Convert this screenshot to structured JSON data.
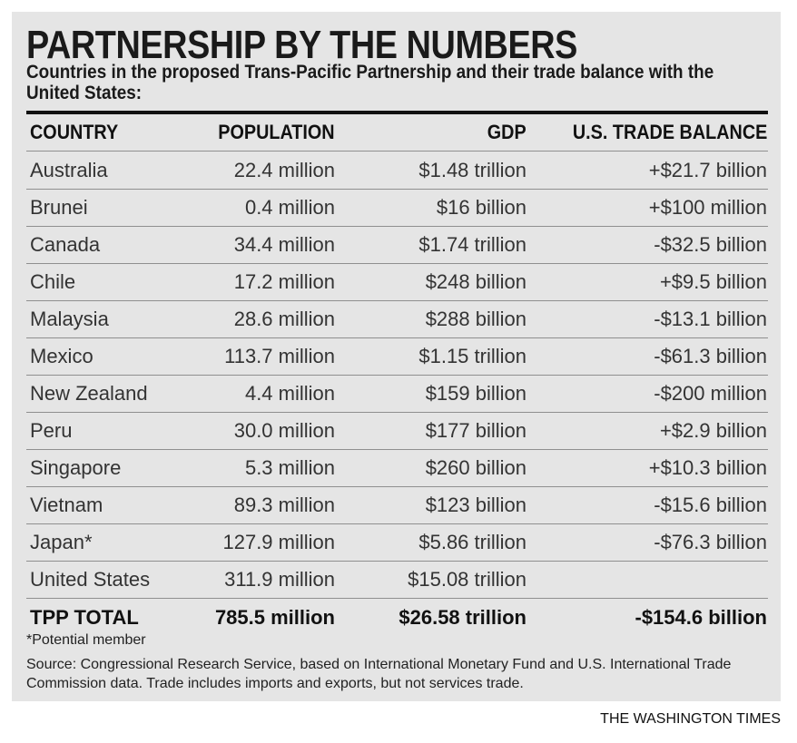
{
  "title": "PARTNERSHIP BY THE NUMBERS",
  "subtitle": "Countries in the proposed Trans-Pacific Partnership and their trade balance with the United States:",
  "headers": {
    "country": "COUNTRY",
    "population": "POPULATION",
    "gdp": "GDP",
    "balance": "U.S. TRADE BALANCE"
  },
  "rows": [
    {
      "country": "Australia",
      "population": "22.4 million",
      "gdp": "$1.48 trillion",
      "balance": "+$21.7 billion"
    },
    {
      "country": "Brunei",
      "population": "0.4 million",
      "gdp": "$16 billion",
      "balance": "+$100 million"
    },
    {
      "country": "Canada",
      "population": "34.4 million",
      "gdp": "$1.74 trillion",
      "balance": "-$32.5 billion"
    },
    {
      "country": "Chile",
      "population": "17.2 million",
      "gdp": "$248 billion",
      "balance": "+$9.5 billion"
    },
    {
      "country": "Malaysia",
      "population": "28.6 million",
      "gdp": "$288 billion",
      "balance": "-$13.1 billion"
    },
    {
      "country": "Mexico",
      "population": "113.7 million",
      "gdp": "$1.15 trillion",
      "balance": "-$61.3 billion"
    },
    {
      "country": "New Zealand",
      "population": "4.4 million",
      "gdp": "$159 billion",
      "balance": "-$200 million"
    },
    {
      "country": "Peru",
      "population": "30.0 million",
      "gdp": "$177 billion",
      "balance": "+$2.9 billion"
    },
    {
      "country": "Singapore",
      "population": "5.3 million",
      "gdp": "$260 billion",
      "balance": "+$10.3 billion"
    },
    {
      "country": "Vietnam",
      "population": "89.3 million",
      "gdp": "$123 billion",
      "balance": "-$15.6 billion"
    },
    {
      "country": "Japan*",
      "population": "127.9 million",
      "gdp": "$5.86 trillion",
      "balance": "-$76.3 billion"
    },
    {
      "country": "United States",
      "population": "311.9 million",
      "gdp": "$15.08 trillion",
      "balance": ""
    }
  ],
  "total": {
    "country": "TPP TOTAL",
    "population": "785.5 million",
    "gdp": "$26.58 trillion",
    "balance": "-$154.6 billion"
  },
  "footnote": "*Potential member",
  "source": "Source: Congressional Research Service, based on International Monetary Fund and U.S. International Trade Commission data. Trade includes imports and exports, but not services trade.",
  "credit": "THE WASHINGTON TIMES",
  "chart_data": {
    "type": "table",
    "title": "PARTNERSHIP BY THE NUMBERS",
    "subtitle": "Countries in the proposed Trans-Pacific Partnership and their trade balance with the United States:",
    "columns": [
      "COUNTRY",
      "POPULATION",
      "GDP",
      "U.S. TRADE BALANCE"
    ],
    "rows": [
      [
        "Australia",
        "22.4 million",
        "$1.48 trillion",
        "+$21.7 billion"
      ],
      [
        "Brunei",
        "0.4 million",
        "$16 billion",
        "+$100 million"
      ],
      [
        "Canada",
        "34.4 million",
        "$1.74 trillion",
        "-$32.5 billion"
      ],
      [
        "Chile",
        "17.2 million",
        "$248 billion",
        "+$9.5 billion"
      ],
      [
        "Malaysia",
        "28.6 million",
        "$288 billion",
        "-$13.1 billion"
      ],
      [
        "Mexico",
        "113.7 million",
        "$1.15 trillion",
        "-$61.3 billion"
      ],
      [
        "New Zealand",
        "4.4 million",
        "$159 billion",
        "-$200 million"
      ],
      [
        "Peru",
        "30.0 million",
        "$177 billion",
        "+$2.9 billion"
      ],
      [
        "Singapore",
        "5.3 million",
        "$260 billion",
        "+$10.3 billion"
      ],
      [
        "Vietnam",
        "89.3 million",
        "$123 billion",
        "-$15.6 billion"
      ],
      [
        "Japan*",
        "127.9 million",
        "$5.86 trillion",
        "-$76.3 billion"
      ],
      [
        "United States",
        "311.9 million",
        "$15.08 trillion",
        ""
      ],
      [
        "TPP TOTAL",
        "785.5 million",
        "$26.58 trillion",
        "-$154.6 billion"
      ]
    ]
  }
}
